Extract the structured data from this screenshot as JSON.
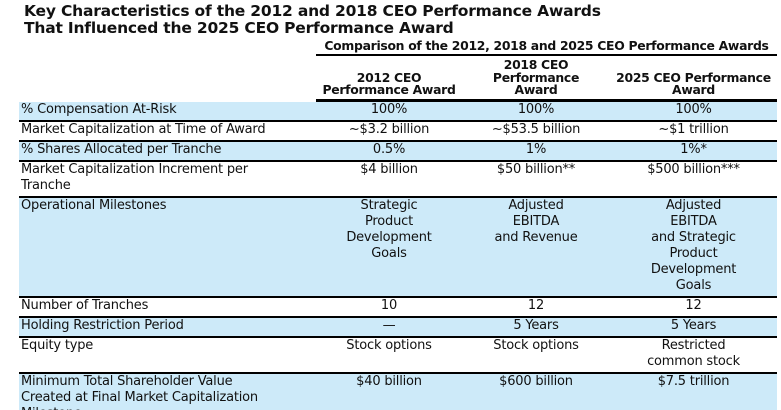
{
  "title": {
    "text": "Key Characteristics of the 2012 and 2018 CEO Performance Awards\nThat Influenced the 2025 CEO Performance Award"
  },
  "table": {
    "caption": "Comparison of the 2012, 2018 and 2025 CEO Performance Awards",
    "columns": [
      "2012 CEO\nPerformance Award",
      "2018 CEO\nPerformance\nAward",
      "2025 CEO Performance\nAward"
    ],
    "rows": [
      {
        "label": "% Compensation At-Risk",
        "values": [
          "100%",
          "100%",
          "100%"
        ]
      },
      {
        "label": "Market Capitalization at Time of Award",
        "values": [
          "~$3.2 billion",
          "~$53.5 billion",
          "~$1 trillion"
        ]
      },
      {
        "label": "% Shares Allocated per Tranche",
        "values": [
          "0.5%",
          "1%",
          "1%*"
        ]
      },
      {
        "label": "Market Capitalization Increment per\nTranche",
        "values": [
          "$4 billion",
          "$50 billion**",
          "$500 billion***"
        ]
      },
      {
        "label": "Operational Milestones",
        "values": [
          "Strategic\nProduct\nDevelopment\nGoals",
          "Adjusted\nEBITDA\nand Revenue",
          "Adjusted\nEBITDA\nand Strategic\nProduct\nDevelopment\nGoals"
        ]
      },
      {
        "label": "Number of Tranches",
        "values": [
          "10",
          "12",
          "12"
        ]
      },
      {
        "label": "Holding Restriction Period",
        "values": [
          "—",
          "5 Years",
          "5 Years"
        ]
      },
      {
        "label": "Equity type",
        "values": [
          "Stock options",
          "Stock options",
          "Restricted\ncommon stock"
        ]
      },
      {
        "label": "Minimum Total Shareholder Value\nCreated at Final Market Capitalization\nMilestone",
        "values": [
          "$40 billion",
          "$600 billion",
          "$7.5 trillion"
        ]
      }
    ]
  },
  "colors": {
    "row_highlight": "#cdeaf9",
    "text": "#111111",
    "border": "#000000"
  }
}
